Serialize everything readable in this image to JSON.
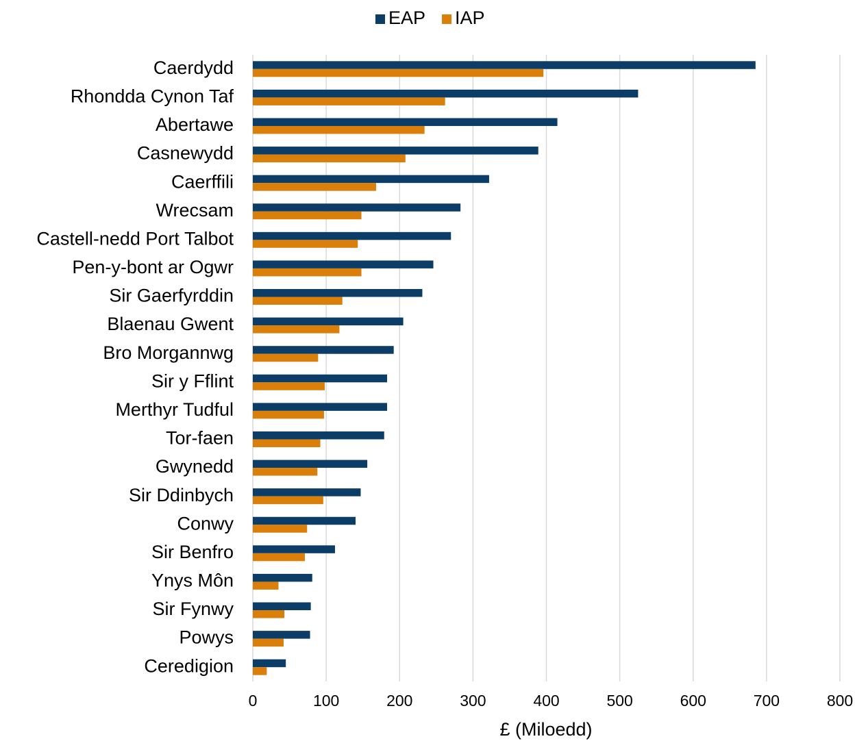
{
  "chart_data": {
    "type": "hbar",
    "xlabel": "£ (Miloedd)",
    "categories": [
      "Caerdydd",
      "Rhondda Cynon Taf",
      "Abertawe",
      "Casnewydd",
      "Caerffili",
      "Wrecsam",
      "Castell-nedd Port Talbot",
      "Pen-y-bont ar Ogwr",
      "Sir Gaerfyrddin",
      "Blaenau Gwent",
      "Bro Morgannwg",
      "Sir y Fflint",
      "Merthyr Tudful",
      "Tor-faen",
      "Gwynedd",
      "Sir Ddinbych",
      "Conwy",
      "Sir Benfro",
      "Ynys Môn",
      "Sir Fynwy",
      "Powys",
      "Ceredigion"
    ],
    "series": [
      {
        "name": "EAP",
        "color": "#0b3d66",
        "values": [
          685,
          525,
          415,
          389,
          322,
          283,
          270,
          246,
          231,
          205,
          192,
          183,
          183,
          179,
          156,
          147,
          140,
          112,
          81,
          79,
          78,
          45
        ]
      },
      {
        "name": "IAP",
        "color": "#d97f0a",
        "values": [
          396,
          262,
          234,
          208,
          168,
          148,
          143,
          148,
          122,
          118,
          89,
          98,
          97,
          92,
          88,
          96,
          74,
          71,
          35,
          43,
          42,
          19
        ]
      }
    ],
    "xlim": [
      0,
      800
    ],
    "xticks": [
      0,
      100,
      200,
      300,
      400,
      500,
      600,
      700,
      800
    ],
    "grid": true,
    "legend": "top"
  }
}
